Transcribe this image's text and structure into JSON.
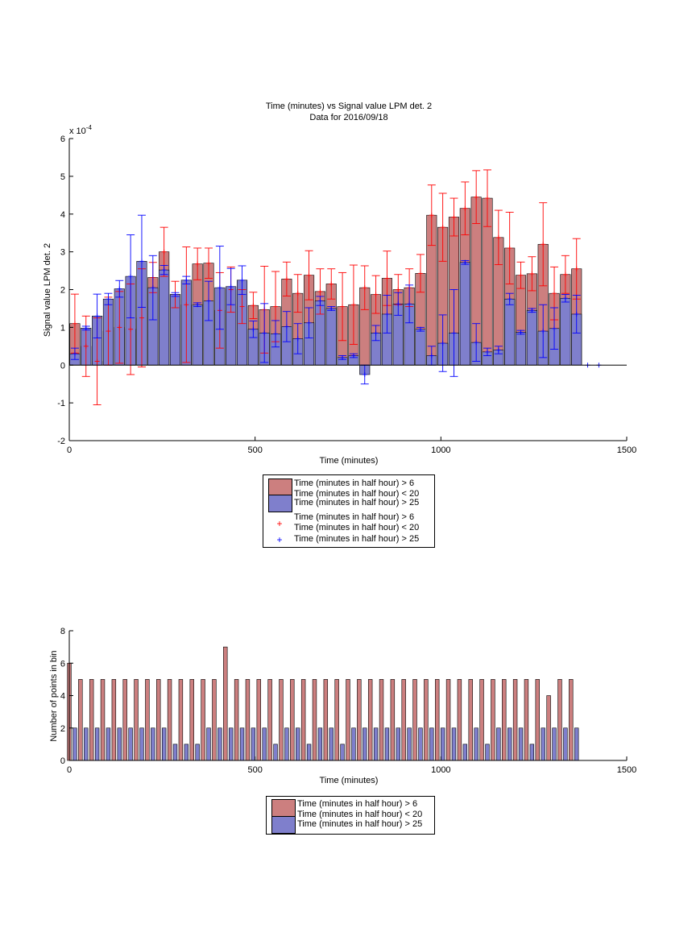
{
  "chart_data": [
    {
      "type": "bar",
      "title": "Time (minutes) vs Signal value LPM det. 2",
      "subtitle": "Data for 2016/09/18",
      "xlabel": "Time (minutes)",
      "ylabel": "Signal value LPM det. 2",
      "y_multiplier_label": "x 10",
      "y_multiplier_exp": "-4",
      "xlim": [
        0,
        1500
      ],
      "ylim": [
        -2,
        6
      ],
      "x_ticks": [
        "0",
        "500",
        "1000",
        "1500"
      ],
      "y_ticks": [
        "-2",
        "-1",
        "0",
        "1",
        "2",
        "3",
        "4",
        "5",
        "6"
      ],
      "grid": false,
      "legend_position": "below",
      "legend": [
        {
          "label": "Time (minutes in half hour) > 6\nTime (minutes in half hour) < 20",
          "kind": "bar",
          "color": "#cc7f7f"
        },
        {
          "label": "Time (minutes in half hour) > 25",
          "kind": "bar",
          "color": "#7f7fcc"
        },
        {
          "label": "Time (minutes in half hour) > 6\nTime (minutes in half hour) < 20",
          "kind": "errorbar",
          "color": "#ff0000"
        },
        {
          "label": "Time (minutes in half hour) > 25",
          "kind": "errorbar",
          "color": "#0000ff"
        }
      ],
      "series": [
        {
          "color": "#cc7f7f",
          "error_color": "#ff0000",
          "x": [
            15,
            75,
            135,
            195,
            255,
            315,
            375,
            435,
            495,
            555,
            615,
            675,
            735,
            795,
            855,
            915,
            975,
            1035,
            1095,
            1155,
            1215,
            1275,
            1335
          ],
          "values": [
            1.1,
            0.1,
            1.0,
            1.25,
            3.0,
            1.6,
            2.7,
            2.0,
            1.58,
            1.55,
            1.9,
            1.95,
            1.55,
            2.05,
            2.3,
            2.05,
            3.97,
            3.92,
            4.45,
            3.38,
            2.38,
            3.2,
            2.4
          ],
          "err": [
            0.78,
            1.15,
            0.95,
            1.3,
            0.65,
            1.53,
            0.4,
            0.6,
            0.35,
            0.93,
            0.5,
            0.6,
            0.9,
            0.58,
            0.72,
            0.5,
            0.8,
            0.5,
            0.7,
            0.72,
            0.35,
            1.1,
            0.5
          ]
        },
        {
          "color": "#cc7f7f",
          "error_color": "#ff0000",
          "x": [
            45,
            105,
            165,
            225,
            285,
            345,
            405,
            465,
            525,
            585,
            645,
            705,
            765,
            825,
            885,
            945,
            1005,
            1065,
            1125,
            1185,
            1245,
            1305,
            1365
          ],
          "values": [
            0.5,
            0.9,
            0.95,
            2.32,
            1.87,
            2.68,
            1.45,
            1.55,
            1.47,
            2.28,
            2.38,
            2.15,
            1.6,
            1.87,
            2.0,
            2.43,
            3.65,
            4.15,
            4.42,
            3.1,
            2.42,
            1.9,
            2.55
          ],
          "err": [
            0.8,
            0.9,
            1.2,
            0.4,
            0.35,
            0.42,
            1.0,
            0.45,
            1.15,
            0.45,
            0.65,
            0.4,
            1.05,
            0.5,
            0.4,
            0.5,
            0.9,
            0.7,
            0.75,
            0.95,
            0.45,
            0.7,
            0.8
          ]
        },
        {
          "color": "#7f7fcc",
          "error_color": "#0000ff",
          "x": [
            15,
            75,
            135,
            195,
            255,
            315,
            375,
            435,
            495,
            555,
            615,
            675,
            735,
            795,
            855,
            915,
            975,
            1035,
            1095,
            1155,
            1215,
            1275,
            1335
          ],
          "values": [
            0.3,
            1.3,
            2.02,
            2.75,
            2.52,
            2.25,
            1.7,
            2.08,
            0.95,
            0.83,
            0.7,
            1.7,
            0.2,
            -0.25,
            1.35,
            1.62,
            0.25,
            0.85,
            0.6,
            0.4,
            0.87,
            0.9,
            1.77
          ],
          "err": [
            0.15,
            0.58,
            0.22,
            1.22,
            0.12,
            0.1,
            0.52,
            0.48,
            0.22,
            0.35,
            0.4,
            0.12,
            0.05,
            0.25,
            0.5,
            0.5,
            0.25,
            1.15,
            0.5,
            0.1,
            0.05,
            0.7,
            0.1
          ]
        },
        {
          "color": "#7f7fcc",
          "error_color": "#0000ff",
          "x": [
            45,
            105,
            165,
            225,
            285,
            345,
            405,
            465,
            525,
            585,
            645,
            705,
            765,
            825,
            885,
            945,
            1005,
            1065,
            1125,
            1185,
            1245,
            1305,
            1365
          ],
          "values": [
            0.98,
            1.75,
            2.35,
            2.05,
            1.87,
            1.6,
            2.05,
            2.25,
            0.85,
            1.02,
            1.12,
            1.5,
            0.25,
            0.85,
            1.62,
            0.95,
            0.58,
            2.72,
            0.35,
            1.75,
            1.45,
            0.97,
            1.35
          ],
          "err": [
            0.05,
            0.15,
            1.1,
            0.85,
            0.05,
            0.05,
            1.1,
            0.38,
            0.78,
            0.4,
            0.4,
            0.05,
            0.05,
            0.2,
            0.3,
            0.05,
            0.75,
            0.05,
            0.1,
            0.15,
            0.05,
            0.55,
            0.5
          ]
        },
        {
          "color": "#7f7fcc",
          "error_color": "#0000ff",
          "x": [
            1395,
            1425
          ],
          "values": [
            0.0,
            0.0
          ],
          "err": [
            0.0,
            0.0
          ]
        }
      ]
    },
    {
      "type": "bar",
      "xlabel": "Time (minutes)",
      "ylabel": "Number of points in bin",
      "xlim": [
        0,
        1500
      ],
      "ylim": [
        0,
        8
      ],
      "x_ticks": [
        "0",
        "500",
        "1000",
        "1500"
      ],
      "y_ticks": [
        "0",
        "2",
        "4",
        "6",
        "8"
      ],
      "grid": false,
      "legend_position": "below",
      "legend": [
        {
          "label": "Time (minutes in half hour) > 6\nTime (minutes in half hour) < 20",
          "kind": "bar",
          "color": "#cc7f7f"
        },
        {
          "label": "Time (minutes in half hour) > 25",
          "kind": "bar",
          "color": "#7f7fcc"
        }
      ],
      "series": [
        {
          "color": "#cc7f7f",
          "x": [
            0,
            30,
            60,
            90,
            120,
            150,
            180,
            210,
            240,
            270,
            300,
            330,
            360,
            390,
            420,
            450,
            480,
            510,
            540,
            570,
            600,
            630,
            660,
            690,
            720,
            750,
            780,
            810,
            840,
            870,
            900,
            930,
            960,
            990,
            1020,
            1050,
            1080,
            1110,
            1140,
            1170,
            1200,
            1230,
            1260,
            1290,
            1320,
            1350
          ],
          "values": [
            6,
            5,
            5,
            5,
            5,
            5,
            5,
            5,
            5,
            5,
            5,
            5,
            5,
            5,
            7,
            5,
            5,
            5,
            5,
            5,
            5,
            5,
            5,
            5,
            5,
            5,
            5,
            5,
            5,
            5,
            5,
            5,
            5,
            5,
            5,
            5,
            5,
            5,
            5,
            5,
            5,
            5,
            5,
            4,
            5,
            5
          ]
        },
        {
          "color": "#7f7fcc",
          "x": [
            15,
            45,
            75,
            105,
            135,
            165,
            195,
            225,
            255,
            285,
            315,
            345,
            375,
            405,
            435,
            465,
            495,
            525,
            555,
            585,
            615,
            645,
            675,
            705,
            735,
            765,
            795,
            825,
            855,
            885,
            915,
            945,
            975,
            1005,
            1035,
            1065,
            1095,
            1125,
            1155,
            1185,
            1215,
            1245,
            1275,
            1305,
            1335,
            1365
          ],
          "values": [
            2,
            2,
            2,
            2,
            2,
            2,
            2,
            2,
            2,
            1,
            1,
            1,
            2,
            2,
            2,
            2,
            2,
            2,
            1,
            2,
            2,
            1,
            2,
            2,
            1,
            2,
            2,
            2,
            2,
            2,
            2,
            2,
            2,
            2,
            2,
            1,
            2,
            1,
            2,
            2,
            2,
            1,
            2,
            2,
            2,
            2
          ]
        }
      ]
    }
  ]
}
